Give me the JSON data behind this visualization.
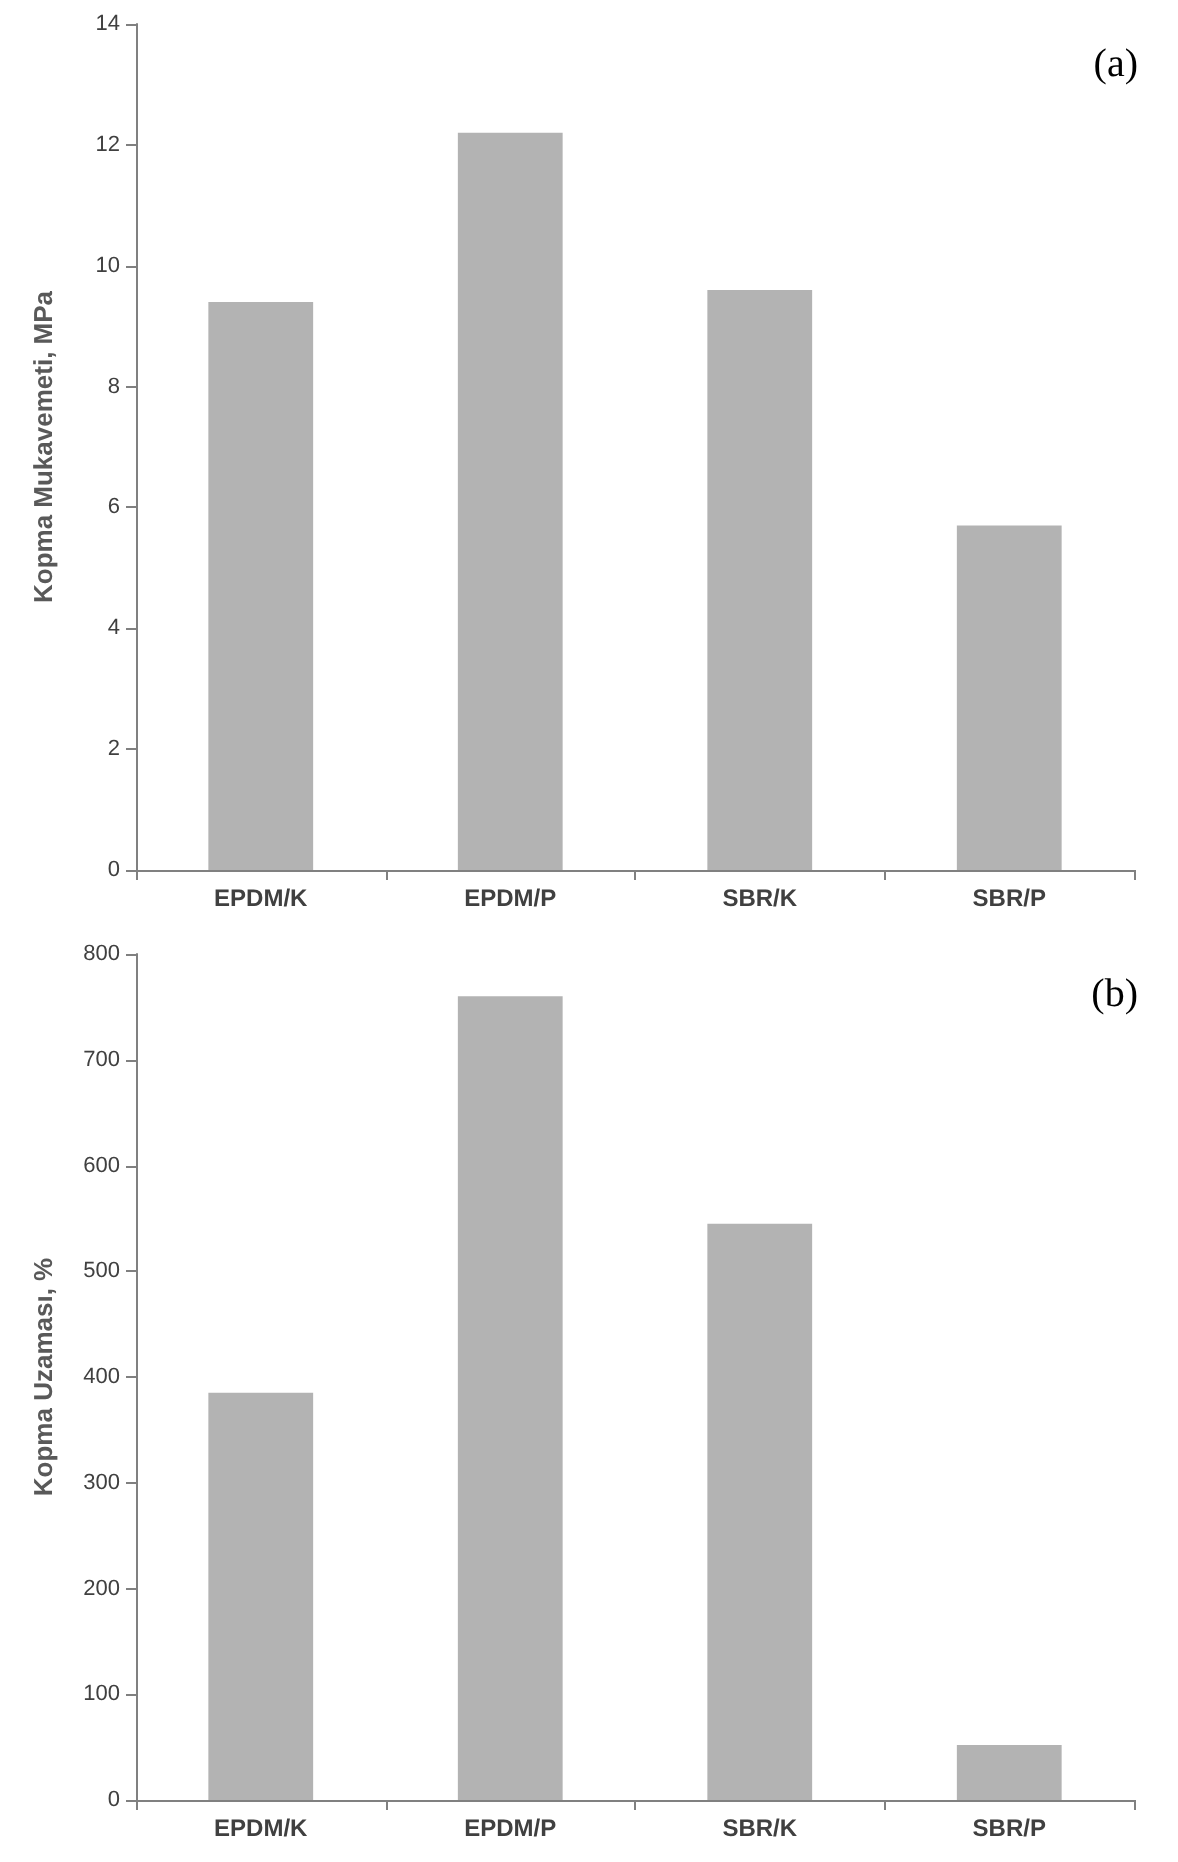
{
  "chart_data": [
    {
      "type": "bar",
      "ylabel": "Kopma Mukavemeti, MPa",
      "categories": [
        "EPDM/K",
        "EPDM/P",
        "SBR/K",
        "SBR/P"
      ],
      "values": [
        9.4,
        12.2,
        9.6,
        5.7
      ],
      "color": "#b3b3b3",
      "ylim": [
        0,
        14
      ],
      "yticks": [
        0,
        2,
        4,
        6,
        8,
        10,
        12,
        14
      ],
      "grid": false,
      "annotations": [
        "(a)"
      ]
    },
    {
      "type": "bar",
      "ylabel": "Kopma Uzaması, %",
      "categories": [
        "EPDM/K",
        "EPDM/P",
        "SBR/K",
        "SBR/P"
      ],
      "values": [
        385,
        760,
        545,
        52
      ],
      "color": "#b3b3b3",
      "ylim": [
        0,
        800
      ],
      "yticks": [
        0,
        100,
        200,
        300,
        400,
        500,
        600,
        700,
        800
      ],
      "grid": false,
      "annotations": [
        "(b)"
      ]
    }
  ]
}
